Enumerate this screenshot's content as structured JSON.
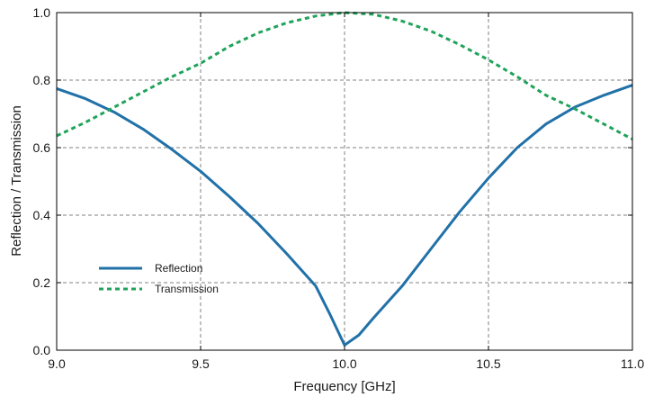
{
  "chart_data": {
    "type": "line",
    "title": "",
    "xlabel": "Frequency [GHz]",
    "ylabel": "Reflection / Transmission",
    "xlim": [
      9.0,
      11.0
    ],
    "ylim": [
      0.0,
      1.0
    ],
    "xticks": [
      "9.0",
      "9.5",
      "10.0",
      "10.5",
      "11.0"
    ],
    "yticks": [
      "0.0",
      "0.2",
      "0.4",
      "0.6",
      "0.8",
      "1.0"
    ],
    "grid": true,
    "legend_position": "center-left",
    "series": [
      {
        "name": "Reflection",
        "color": "#2171a9",
        "style": "solid",
        "x": [
          9.0,
          9.1,
          9.2,
          9.3,
          9.4,
          9.5,
          9.6,
          9.7,
          9.8,
          9.9,
          9.95,
          10.0,
          10.05,
          10.1,
          10.2,
          10.3,
          10.4,
          10.5,
          10.6,
          10.7,
          10.8,
          10.9,
          11.0
        ],
        "y": [
          0.775,
          0.745,
          0.705,
          0.655,
          0.595,
          0.53,
          0.455,
          0.375,
          0.285,
          0.19,
          0.105,
          0.015,
          0.045,
          0.095,
          0.19,
          0.3,
          0.41,
          0.51,
          0.6,
          0.67,
          0.72,
          0.755,
          0.785
        ]
      },
      {
        "name": "Transmission",
        "color": "#1fa35a",
        "style": "dashed",
        "x": [
          9.0,
          9.1,
          9.2,
          9.3,
          9.4,
          9.5,
          9.6,
          9.7,
          9.8,
          9.9,
          10.0,
          10.1,
          10.2,
          10.3,
          10.4,
          10.5,
          10.6,
          10.7,
          10.8,
          10.9,
          11.0
        ],
        "y": [
          0.635,
          0.675,
          0.72,
          0.765,
          0.81,
          0.85,
          0.9,
          0.94,
          0.97,
          0.99,
          1.0,
          0.995,
          0.975,
          0.945,
          0.905,
          0.86,
          0.81,
          0.755,
          0.715,
          0.67,
          0.625
        ]
      }
    ]
  }
}
